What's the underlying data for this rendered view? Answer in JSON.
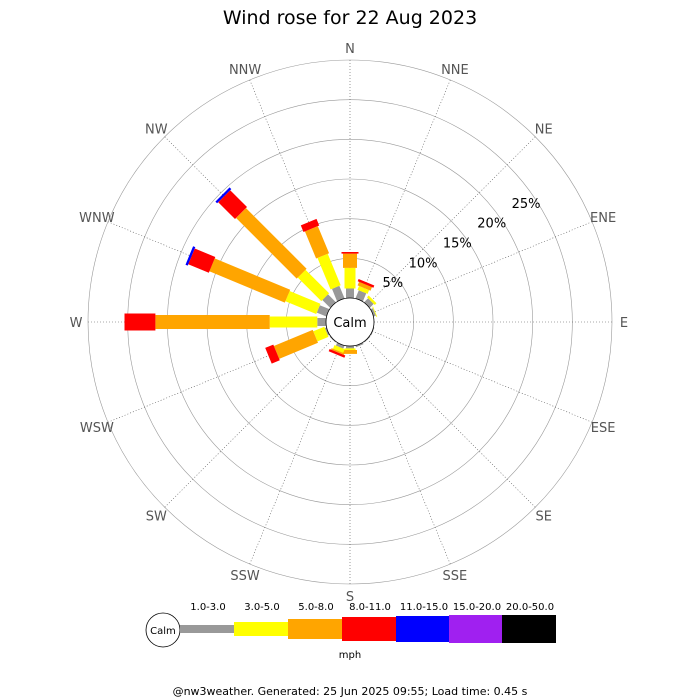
{
  "chart_data": {
    "type": "wind-rose",
    "title": "Wind rose for 22 Aug 2023",
    "directions": [
      "N",
      "NNE",
      "NE",
      "ENE",
      "E",
      "ESE",
      "SE",
      "SSE",
      "S",
      "SSW",
      "SW",
      "WSW",
      "W",
      "WNW",
      "NW",
      "NNW"
    ],
    "radial_labels": [
      "5%",
      "10%",
      "15%",
      "20%",
      "25%"
    ],
    "radial_ticks": [
      5,
      10,
      15,
      20,
      25
    ],
    "calm_label": "Calm",
    "speed_bins": [
      "1.0-3.0",
      "3.0-5.0",
      "5.0-8.0",
      "8.0-11.0",
      "11.0-15.0",
      "15.0-20.0",
      "20.0-50.0"
    ],
    "bin_colors": [
      "#999999",
      "#ffff00",
      "#ffa500",
      "#ff0000",
      "#0000ff",
      "#a020f0",
      "#000000"
    ],
    "units": "mph",
    "series": [
      {
        "name": "1.0-3.0",
        "values": [
          1.2,
          1.1,
          0.7,
          0.3,
          0.0,
          0.1,
          0.1,
          0.2,
          0.3,
          0.4,
          0.1,
          0.2,
          1.1,
          1.3,
          1.4,
          1.7
        ]
      },
      {
        "name": "3.0-5.0",
        "values": [
          2.6,
          0.5,
          0.3,
          0.1,
          0.0,
          0.0,
          0.0,
          0.0,
          0.2,
          0.5,
          0.0,
          1.5,
          6.0,
          4.2,
          4.2,
          4.3
        ]
      },
      {
        "name": "5.0-8.0",
        "values": [
          1.8,
          0.5,
          0.0,
          0.0,
          0.0,
          0.0,
          0.0,
          0.0,
          0.5,
          0.2,
          0.0,
          5.3,
          14.4,
          10.3,
          10.8,
          3.7
        ]
      },
      {
        "name": "8.0-11.0",
        "values": [
          0.2,
          0.3,
          0.0,
          0.0,
          0.0,
          0.0,
          0.0,
          0.0,
          0.0,
          0.3,
          0.0,
          1.1,
          3.9,
          2.8,
          3.0,
          0.9
        ]
      },
      {
        "name": "11.0-15.0",
        "values": [
          0.0,
          0.0,
          0.0,
          0.0,
          0.0,
          0.0,
          0.0,
          0.0,
          0.0,
          0.0,
          0.0,
          0.0,
          0.0,
          0.3,
          0.3,
          0.0
        ]
      },
      {
        "name": "15.0-20.0",
        "values": [
          0,
          0,
          0,
          0,
          0,
          0,
          0,
          0,
          0,
          0,
          0,
          0,
          0,
          0,
          0,
          0
        ]
      },
      {
        "name": "20.0-50.0",
        "values": [
          0,
          0,
          0,
          0,
          0,
          0,
          0,
          0,
          0,
          0,
          0,
          0,
          0,
          0,
          0,
          0
        ]
      }
    ],
    "rmax": 30
  },
  "footer": "@nw3weather. Generated: 25 Jun 2025 09:55; Load time: 0.45 s"
}
